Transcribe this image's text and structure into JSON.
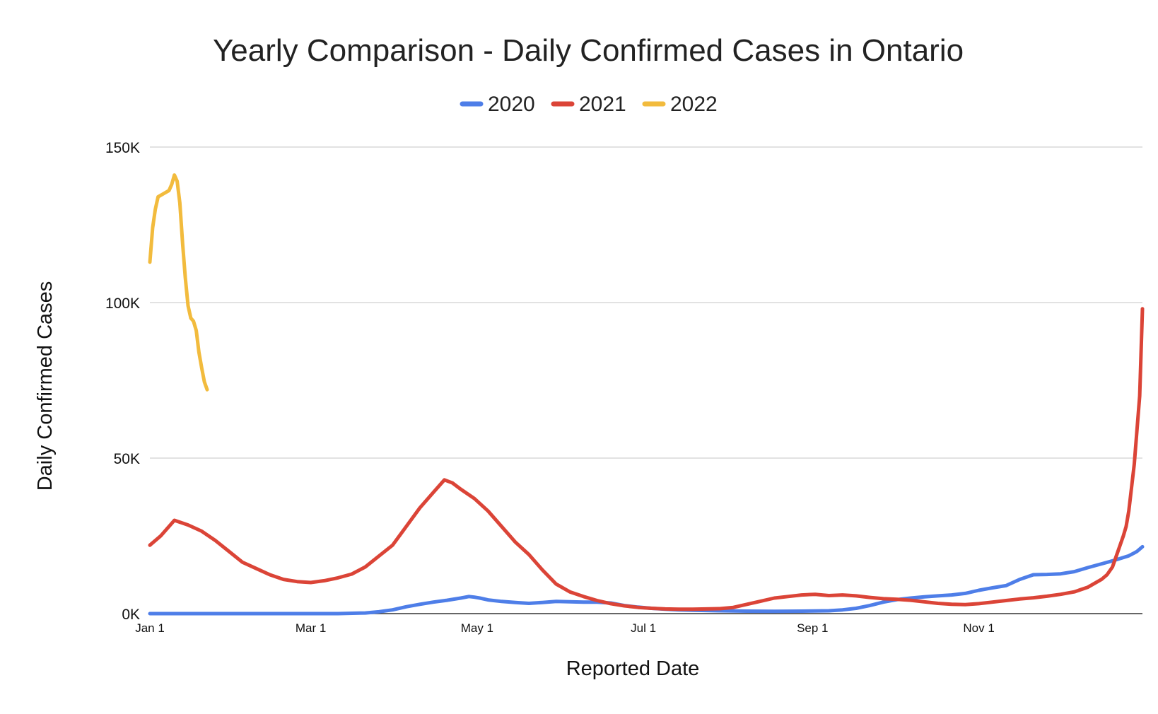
{
  "chart_data": {
    "type": "line",
    "title": "Yearly Comparison - Daily Confirmed Cases in Ontario",
    "xlabel": "Reported Date",
    "ylabel": "Daily Confirmed Cases",
    "ylim": [
      0,
      150000
    ],
    "xlim_day_of_year": [
      1,
      365
    ],
    "grid": true,
    "legend_position": "top-center",
    "y_ticks": [
      {
        "value": 0,
        "label": "0K"
      },
      {
        "value": 50000,
        "label": "50K"
      },
      {
        "value": 100000,
        "label": "100K"
      },
      {
        "value": 150000,
        "label": "150K"
      }
    ],
    "x_ticks": [
      {
        "day": 1,
        "label": "Jan 1"
      },
      {
        "day": 60,
        "label": "Mar 1"
      },
      {
        "day": 121,
        "label": "May 1"
      },
      {
        "day": 182,
        "label": "Jul 1"
      },
      {
        "day": 244,
        "label": "Sep 1"
      },
      {
        "day": 305,
        "label": "Nov 1"
      }
    ],
    "series": [
      {
        "name": "2020",
        "color": "#4e7ee8",
        "points": [
          [
            1,
            0
          ],
          [
            70,
            0
          ],
          [
            80,
            200
          ],
          [
            85,
            600
          ],
          [
            90,
            1200
          ],
          [
            95,
            2200
          ],
          [
            100,
            3000
          ],
          [
            105,
            3700
          ],
          [
            110,
            4300
          ],
          [
            115,
            5000
          ],
          [
            118,
            5500
          ],
          [
            120,
            5300
          ],
          [
            122,
            5000
          ],
          [
            125,
            4400
          ],
          [
            130,
            3900
          ],
          [
            135,
            3600
          ],
          [
            140,
            3300
          ],
          [
            145,
            3600
          ],
          [
            150,
            3900
          ],
          [
            155,
            3800
          ],
          [
            160,
            3700
          ],
          [
            165,
            3700
          ],
          [
            170,
            3400
          ],
          [
            175,
            2600
          ],
          [
            180,
            2100
          ],
          [
            185,
            1700
          ],
          [
            190,
            1400
          ],
          [
            195,
            1200
          ],
          [
            200,
            1100
          ],
          [
            210,
            900
          ],
          [
            220,
            800
          ],
          [
            230,
            750
          ],
          [
            240,
            800
          ],
          [
            250,
            900
          ],
          [
            255,
            1200
          ],
          [
            260,
            1700
          ],
          [
            265,
            2600
          ],
          [
            270,
            3700
          ],
          [
            275,
            4500
          ],
          [
            280,
            5000
          ],
          [
            285,
            5400
          ],
          [
            290,
            5700
          ],
          [
            295,
            6000
          ],
          [
            300,
            6500
          ],
          [
            305,
            7500
          ],
          [
            310,
            8300
          ],
          [
            315,
            9000
          ],
          [
            320,
            11000
          ],
          [
            325,
            12500
          ],
          [
            330,
            12600
          ],
          [
            335,
            12800
          ],
          [
            340,
            13500
          ],
          [
            345,
            14800
          ],
          [
            350,
            16000
          ],
          [
            355,
            17200
          ],
          [
            360,
            18600
          ],
          [
            362,
            19500
          ],
          [
            363,
            20000
          ],
          [
            365,
            21500
          ]
        ]
      },
      {
        "name": "2021",
        "color": "#db4437",
        "points": [
          [
            1,
            22000
          ],
          [
            5,
            25000
          ],
          [
            10,
            30000
          ],
          [
            15,
            28500
          ],
          [
            20,
            26500
          ],
          [
            25,
            23500
          ],
          [
            30,
            20000
          ],
          [
            35,
            16500
          ],
          [
            40,
            14500
          ],
          [
            45,
            12500
          ],
          [
            50,
            11000
          ],
          [
            55,
            10300
          ],
          [
            60,
            10000
          ],
          [
            65,
            10600
          ],
          [
            70,
            11500
          ],
          [
            75,
            12700
          ],
          [
            80,
            15000
          ],
          [
            85,
            18500
          ],
          [
            90,
            22000
          ],
          [
            95,
            28000
          ],
          [
            100,
            34000
          ],
          [
            105,
            39000
          ],
          [
            109,
            43000
          ],
          [
            112,
            42000
          ],
          [
            115,
            40000
          ],
          [
            120,
            37000
          ],
          [
            125,
            33000
          ],
          [
            130,
            28000
          ],
          [
            135,
            23000
          ],
          [
            140,
            19000
          ],
          [
            145,
            14000
          ],
          [
            150,
            9500
          ],
          [
            155,
            7000
          ],
          [
            160,
            5500
          ],
          [
            165,
            4200
          ],
          [
            170,
            3200
          ],
          [
            175,
            2500
          ],
          [
            180,
            2000
          ],
          [
            185,
            1700
          ],
          [
            190,
            1500
          ],
          [
            195,
            1400
          ],
          [
            200,
            1400
          ],
          [
            205,
            1500
          ],
          [
            210,
            1600
          ],
          [
            215,
            2000
          ],
          [
            220,
            3000
          ],
          [
            225,
            4000
          ],
          [
            230,
            5000
          ],
          [
            235,
            5500
          ],
          [
            240,
            6000
          ],
          [
            245,
            6200
          ],
          [
            250,
            5800
          ],
          [
            255,
            6000
          ],
          [
            260,
            5700
          ],
          [
            265,
            5200
          ],
          [
            270,
            4800
          ],
          [
            275,
            4600
          ],
          [
            280,
            4300
          ],
          [
            285,
            3800
          ],
          [
            290,
            3300
          ],
          [
            295,
            3000
          ],
          [
            300,
            2900
          ],
          [
            305,
            3200
          ],
          [
            310,
            3700
          ],
          [
            315,
            4200
          ],
          [
            320,
            4700
          ],
          [
            325,
            5100
          ],
          [
            330,
            5600
          ],
          [
            335,
            6200
          ],
          [
            340,
            7000
          ],
          [
            345,
            8500
          ],
          [
            350,
            11000
          ],
          [
            352,
            12500
          ],
          [
            354,
            15000
          ],
          [
            356,
            20000
          ],
          [
            358,
            25000
          ],
          [
            359,
            28000
          ],
          [
            360,
            33000
          ],
          [
            362,
            48000
          ],
          [
            364,
            70000
          ],
          [
            365,
            98000
          ]
        ]
      },
      {
        "name": "2022",
        "color": "#f2bb3d",
        "points": [
          [
            1,
            113000
          ],
          [
            2,
            124000
          ],
          [
            3,
            130000
          ],
          [
            4,
            134000
          ],
          [
            6,
            135000
          ],
          [
            8,
            136000
          ],
          [
            9,
            138000
          ],
          [
            10,
            141000
          ],
          [
            11,
            139000
          ],
          [
            12,
            132000
          ],
          [
            13,
            119000
          ],
          [
            14,
            108000
          ],
          [
            15,
            99000
          ],
          [
            16,
            95000
          ],
          [
            17,
            94000
          ],
          [
            18,
            91000
          ],
          [
            19,
            84000
          ],
          [
            20,
            79000
          ],
          [
            21,
            74500
          ],
          [
            22,
            72000
          ]
        ]
      }
    ]
  }
}
